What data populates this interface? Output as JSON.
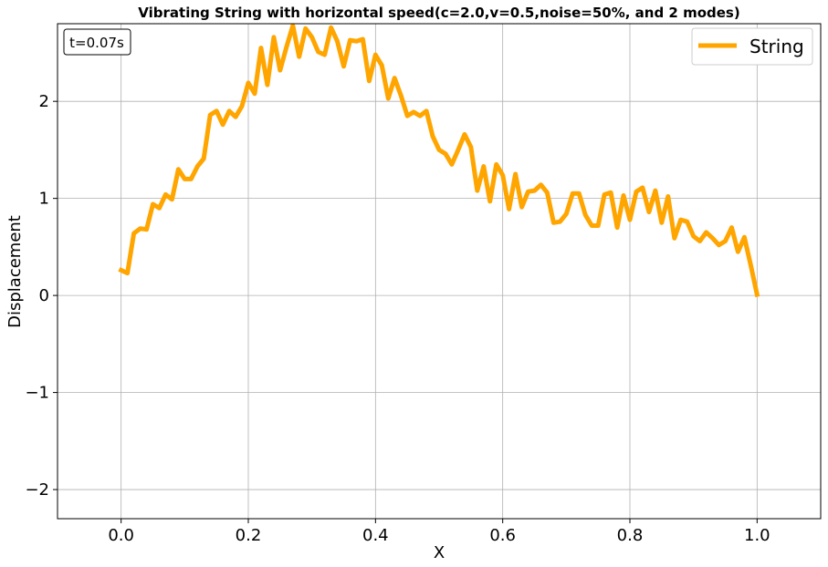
{
  "chart_data": {
    "type": "line",
    "title": "Vibrating String with horizontal speed(c=2.0,v=0.5,noise=50%, and 2 modes)",
    "xlabel": "X",
    "ylabel": "Displacement",
    "xlim": [
      -0.1,
      1.1
    ],
    "ylim": [
      -2.3,
      2.8
    ],
    "xticks": [
      0.0,
      0.2,
      0.4,
      0.6,
      0.8,
      1.0
    ],
    "xtick_labels": [
      "0.0",
      "0.2",
      "0.4",
      "0.6",
      "0.8",
      "1.0"
    ],
    "yticks": [
      -2,
      -1,
      0,
      1,
      2
    ],
    "ytick_labels": [
      "−2",
      "−1",
      "0",
      "1",
      "2"
    ],
    "grid": true,
    "legend_position": "top-right",
    "annotation": "t=0.07s",
    "series": [
      {
        "name": "String",
        "color": "#FFA500",
        "x": [
          0.0,
          0.01,
          0.02,
          0.03,
          0.04,
          0.05,
          0.06,
          0.07,
          0.08,
          0.09,
          0.1,
          0.11,
          0.12,
          0.13,
          0.14,
          0.15,
          0.16,
          0.17,
          0.18,
          0.19,
          0.2,
          0.21,
          0.22,
          0.23,
          0.24,
          0.25,
          0.26,
          0.27,
          0.28,
          0.29,
          0.3,
          0.31,
          0.32,
          0.33,
          0.34,
          0.35,
          0.36,
          0.37,
          0.38,
          0.39,
          0.4,
          0.41,
          0.42,
          0.43,
          0.44,
          0.45,
          0.46,
          0.47,
          0.48,
          0.49,
          0.5,
          0.51,
          0.52,
          0.53,
          0.54,
          0.55,
          0.56,
          0.57,
          0.58,
          0.59,
          0.6,
          0.61,
          0.62,
          0.63,
          0.64,
          0.65,
          0.66,
          0.67,
          0.68,
          0.69,
          0.7,
          0.71,
          0.72,
          0.73,
          0.74,
          0.75,
          0.76,
          0.77,
          0.78,
          0.79,
          0.8,
          0.81,
          0.82,
          0.83,
          0.84,
          0.85,
          0.86,
          0.87,
          0.88,
          0.89,
          0.9,
          0.91,
          0.92,
          0.93,
          0.94,
          0.95,
          0.96,
          0.97,
          0.98,
          0.99,
          1.0
        ],
        "y": [
          0.26,
          0.23,
          0.64,
          0.69,
          0.68,
          0.94,
          0.9,
          1.04,
          0.99,
          1.3,
          1.2,
          1.2,
          1.33,
          1.41,
          1.86,
          1.9,
          1.76,
          1.9,
          1.84,
          1.95,
          2.19,
          2.08,
          2.55,
          2.17,
          2.66,
          2.32,
          2.56,
          2.78,
          2.46,
          2.75,
          2.66,
          2.51,
          2.48,
          2.76,
          2.62,
          2.36,
          2.63,
          2.62,
          2.64,
          2.21,
          2.48,
          2.37,
          2.03,
          2.24,
          2.06,
          1.85,
          1.89,
          1.85,
          1.9,
          1.64,
          1.5,
          1.46,
          1.35,
          1.5,
          1.66,
          1.53,
          1.08,
          1.33,
          0.97,
          1.35,
          1.24,
          0.89,
          1.25,
          0.91,
          1.07,
          1.08,
          1.14,
          1.06,
          0.75,
          0.76,
          0.84,
          1.05,
          1.05,
          0.83,
          0.72,
          0.72,
          1.04,
          1.06,
          0.7,
          1.03,
          0.78,
          1.07,
          1.11,
          0.86,
          1.08,
          0.75,
          1.02,
          0.59,
          0.78,
          0.76,
          0.61,
          0.56,
          0.65,
          0.59,
          0.52,
          0.56,
          0.7,
          0.45,
          0.6,
          0.31,
          0.01
        ]
      }
    ]
  }
}
